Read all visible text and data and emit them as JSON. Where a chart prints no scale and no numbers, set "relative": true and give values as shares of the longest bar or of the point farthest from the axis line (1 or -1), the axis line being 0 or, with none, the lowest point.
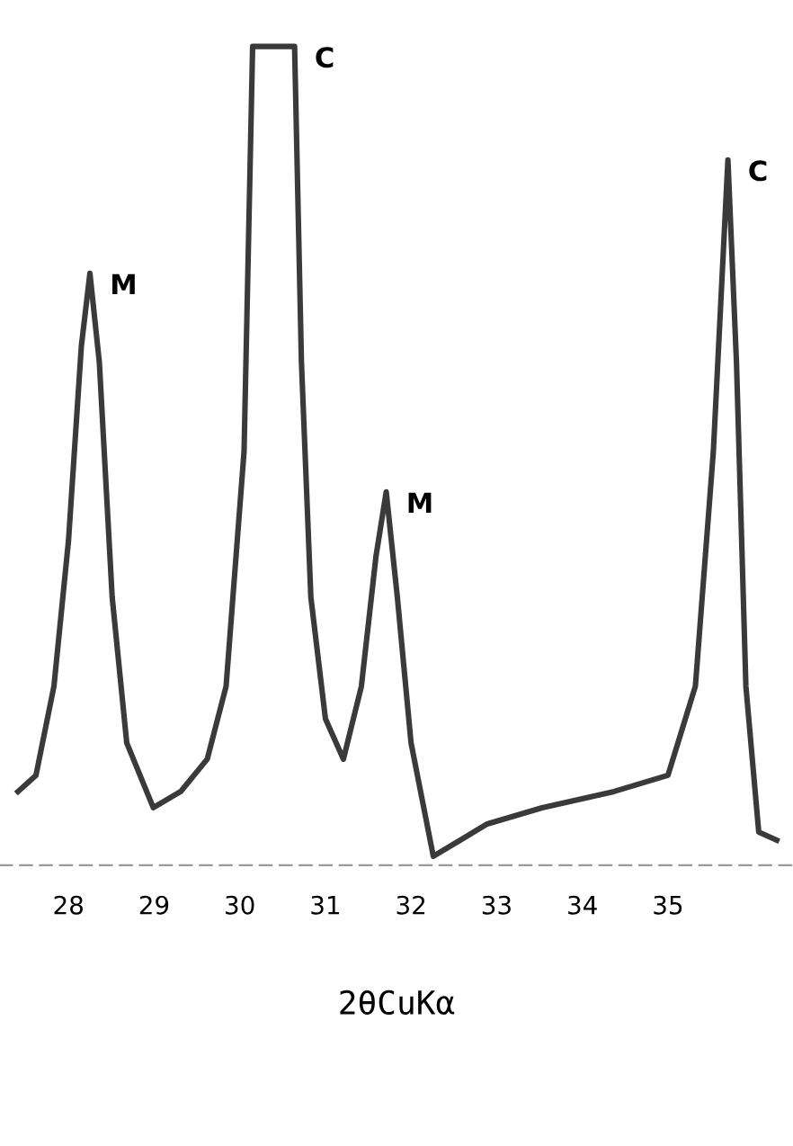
{
  "chart_data": {
    "type": "line",
    "relative": true,
    "xlabel": "2θCuKα",
    "x": [
      27.41,
      27.62,
      27.83,
      28.0,
      28.15,
      28.25,
      28.36,
      28.51,
      28.68,
      28.99,
      29.31,
      29.62,
      29.84,
      30.05,
      30.15,
      30.64,
      30.72,
      30.83,
      31.0,
      31.21,
      31.42,
      31.59,
      31.71,
      31.84,
      32.0,
      32.26,
      32.89,
      33.53,
      34.37,
      35.0,
      35.32,
      35.53,
      35.7,
      35.8,
      35.91,
      36.06,
      36.27
    ],
    "values": [
      0.08,
      0.1,
      0.21,
      0.39,
      0.63,
      0.72,
      0.61,
      0.32,
      0.14,
      0.06,
      0.08,
      0.12,
      0.21,
      0.5,
      1.0,
      1.0,
      0.61,
      0.32,
      0.17,
      0.12,
      0.21,
      0.37,
      0.45,
      0.32,
      0.14,
      0.0,
      0.04,
      0.06,
      0.08,
      0.1,
      0.21,
      0.5,
      0.86,
      0.61,
      0.21,
      0.03,
      0.02
    ],
    "color": "#3a3a3a",
    "xlim": [
      27.2,
      36.46
    ],
    "xticks": [
      28,
      29,
      30,
      31,
      32,
      33,
      34,
      35
    ],
    "tick_labels": "x",
    "grid": false,
    "legend": false,
    "annotations": [
      {
        "text": "M",
        "x": 28.25,
        "y": 0.72
      },
      {
        "text": "C",
        "x": 30.64,
        "y": 1.0
      },
      {
        "text": "M",
        "x": 31.71,
        "y": 0.45
      },
      {
        "text": "C",
        "x": 35.7,
        "y": 0.86
      }
    ]
  }
}
